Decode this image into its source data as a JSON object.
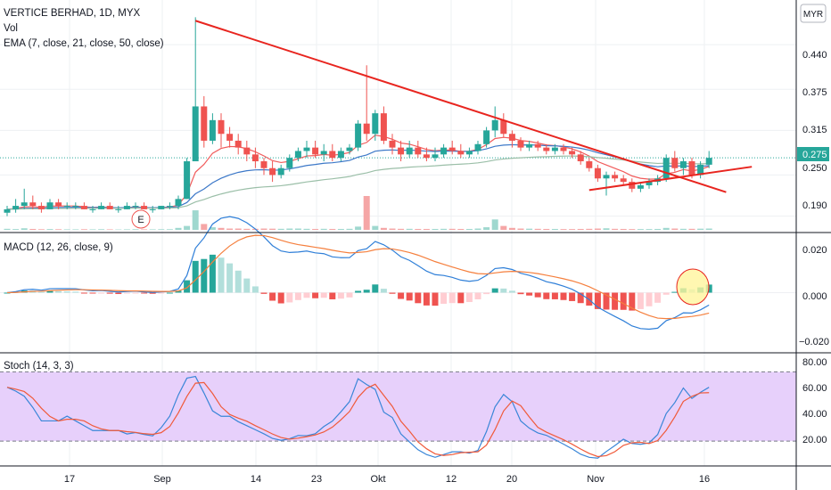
{
  "header": {
    "symbol": "VERTICE BERHAD, 1D, MYX",
    "vol_label": "Vol",
    "ema_label": "EMA (7, close, 21, close, 50, close)",
    "currency_badge": "MYR"
  },
  "colors": {
    "up": "#26a69a",
    "down": "#ef5350",
    "vol_up": "#9fd8cf",
    "vol_down": "#f5a6a6",
    "ema7": "#f15b5b",
    "ema21": "#3c78c8",
    "ema50": "#9bbfa8",
    "trendline": "#e8251f",
    "macd": "#2f7fd8",
    "signal": "#f57f3d",
    "hist_up_strong": "#26a69a",
    "hist_up_weak": "#b2dfdb",
    "hist_down_strong": "#ef5350",
    "hist_down_weak": "#ffcdd2",
    "stoch_k": "#3a86d8",
    "stoch_d": "#f05a3a",
    "stoch_band": "#e7d0fb",
    "grid": "#eef0f3"
  },
  "panes": {
    "price": {
      "yticks": [
        "0.440",
        "0.375",
        "0.315",
        "0.250",
        "0.190"
      ],
      "last_price": "0.275",
      "earnings_marker": "E"
    },
    "macd": {
      "label": "MACD (12, 26, close, 9)",
      "yticks": [
        "0.020",
        "0.000",
        "−0.020"
      ]
    },
    "stoch": {
      "label": "Stoch (14, 3, 3)",
      "yticks": [
        "80.00",
        "60.00",
        "40.00",
        "20.00"
      ]
    }
  },
  "xaxis": {
    "labels": [
      "17",
      "Sep",
      "14",
      "23",
      "Okt",
      "12",
      "20",
      "Nov",
      "16"
    ]
  },
  "chart_data": [
    {
      "type": "candlestick",
      "pane": "price",
      "ylim": [
        0.17,
        0.5
      ],
      "x_tick_labels": [
        "17",
        "Sep",
        "14",
        "23",
        "Okt",
        "12",
        "20",
        "Nov",
        "16"
      ],
      "candles": [
        [
          0.195,
          0.205,
          0.19,
          0.2
        ],
        [
          0.2,
          0.215,
          0.195,
          0.205
        ],
        [
          0.205,
          0.23,
          0.2,
          0.21
        ],
        [
          0.21,
          0.22,
          0.2,
          0.205
        ],
        [
          0.205,
          0.21,
          0.195,
          0.2
        ],
        [
          0.2,
          0.215,
          0.2,
          0.21
        ],
        [
          0.21,
          0.215,
          0.2,
          0.205
        ],
        [
          0.205,
          0.21,
          0.2,
          0.205
        ],
        [
          0.205,
          0.21,
          0.2,
          0.205
        ],
        [
          0.205,
          0.21,
          0.2,
          0.2
        ],
        [
          0.2,
          0.205,
          0.195,
          0.2
        ],
        [
          0.2,
          0.21,
          0.2,
          0.205
        ],
        [
          0.205,
          0.21,
          0.2,
          0.2
        ],
        [
          0.2,
          0.205,
          0.195,
          0.2
        ],
        [
          0.2,
          0.21,
          0.2,
          0.205
        ],
        [
          0.205,
          0.21,
          0.2,
          0.205
        ],
        [
          0.205,
          0.21,
          0.2,
          0.2
        ],
        [
          0.2,
          0.205,
          0.195,
          0.2
        ],
        [
          0.2,
          0.205,
          0.2,
          0.205
        ],
        [
          0.205,
          0.21,
          0.2,
          0.205
        ],
        [
          0.205,
          0.22,
          0.2,
          0.215
        ],
        [
          0.215,
          0.275,
          0.215,
          0.27
        ],
        [
          0.27,
          0.48,
          0.27,
          0.35
        ],
        [
          0.35,
          0.365,
          0.29,
          0.3
        ],
        [
          0.3,
          0.34,
          0.295,
          0.33
        ],
        [
          0.33,
          0.34,
          0.29,
          0.31
        ],
        [
          0.31,
          0.32,
          0.29,
          0.3
        ],
        [
          0.3,
          0.31,
          0.28,
          0.29
        ],
        [
          0.29,
          0.3,
          0.27,
          0.28
        ],
        [
          0.28,
          0.29,
          0.26,
          0.27
        ],
        [
          0.27,
          0.275,
          0.25,
          0.26
        ],
        [
          0.26,
          0.27,
          0.24,
          0.25
        ],
        [
          0.25,
          0.265,
          0.245,
          0.26
        ],
        [
          0.26,
          0.28,
          0.255,
          0.275
        ],
        [
          0.275,
          0.29,
          0.27,
          0.285
        ],
        [
          0.285,
          0.3,
          0.275,
          0.29
        ],
        [
          0.29,
          0.3,
          0.275,
          0.28
        ],
        [
          0.28,
          0.295,
          0.27,
          0.285
        ],
        [
          0.285,
          0.295,
          0.27,
          0.275
        ],
        [
          0.275,
          0.29,
          0.27,
          0.285
        ],
        [
          0.285,
          0.295,
          0.28,
          0.29
        ],
        [
          0.29,
          0.33,
          0.285,
          0.325
        ],
        [
          0.325,
          0.41,
          0.3,
          0.31
        ],
        [
          0.31,
          0.345,
          0.3,
          0.34
        ],
        [
          0.34,
          0.35,
          0.295,
          0.3
        ],
        [
          0.3,
          0.31,
          0.28,
          0.29
        ],
        [
          0.29,
          0.3,
          0.27,
          0.28
        ],
        [
          0.28,
          0.3,
          0.275,
          0.29
        ],
        [
          0.29,
          0.3,
          0.275,
          0.28
        ],
        [
          0.28,
          0.29,
          0.27,
          0.275
        ],
        [
          0.275,
          0.29,
          0.27,
          0.28
        ],
        [
          0.28,
          0.295,
          0.275,
          0.29
        ],
        [
          0.29,
          0.3,
          0.28,
          0.285
        ],
        [
          0.285,
          0.295,
          0.275,
          0.28
        ],
        [
          0.28,
          0.29,
          0.275,
          0.285
        ],
        [
          0.285,
          0.3,
          0.28,
          0.295
        ],
        [
          0.295,
          0.32,
          0.29,
          0.315
        ],
        [
          0.315,
          0.35,
          0.305,
          0.33
        ],
        [
          0.33,
          0.34,
          0.305,
          0.31
        ],
        [
          0.31,
          0.315,
          0.29,
          0.3
        ],
        [
          0.3,
          0.305,
          0.285,
          0.29
        ],
        [
          0.29,
          0.3,
          0.285,
          0.295
        ],
        [
          0.295,
          0.3,
          0.285,
          0.29
        ],
        [
          0.29,
          0.295,
          0.28,
          0.285
        ],
        [
          0.285,
          0.295,
          0.28,
          0.29
        ],
        [
          0.29,
          0.295,
          0.28,
          0.285
        ],
        [
          0.285,
          0.29,
          0.275,
          0.28
        ],
        [
          0.28,
          0.285,
          0.265,
          0.27
        ],
        [
          0.27,
          0.275,
          0.255,
          0.26
        ],
        [
          0.26,
          0.265,
          0.24,
          0.245
        ],
        [
          0.245,
          0.255,
          0.22,
          0.25
        ],
        [
          0.25,
          0.255,
          0.24,
          0.245
        ],
        [
          0.245,
          0.25,
          0.235,
          0.24
        ],
        [
          0.24,
          0.245,
          0.225,
          0.23
        ],
        [
          0.23,
          0.24,
          0.225,
          0.235
        ],
        [
          0.235,
          0.245,
          0.23,
          0.24
        ],
        [
          0.24,
          0.25,
          0.235,
          0.245
        ],
        [
          0.245,
          0.28,
          0.24,
          0.275
        ],
        [
          0.275,
          0.285,
          0.255,
          0.26
        ],
        [
          0.26,
          0.275,
          0.25,
          0.27
        ],
        [
          0.27,
          0.275,
          0.245,
          0.25
        ],
        [
          0.25,
          0.27,
          0.245,
          0.265
        ],
        [
          0.265,
          0.285,
          0.26,
          0.275
        ]
      ],
      "volume": [
        0.8,
        0.6,
        1.2,
        0.7,
        0.5,
        0.6,
        0.5,
        0.4,
        0.4,
        0.5,
        0.4,
        0.5,
        0.4,
        0.3,
        0.4,
        0.5,
        0.4,
        0.4,
        0.5,
        0.5,
        1.5,
        3.0,
        15.0,
        4.5,
        2.0,
        1.5,
        1.0,
        1.0,
        0.8,
        0.8,
        1.0,
        0.9,
        0.8,
        1.0,
        1.0,
        0.8,
        0.7,
        0.8,
        0.7,
        0.7,
        0.8,
        2.5,
        26.0,
        3.0,
        1.5,
        1.0,
        0.8,
        0.8,
        0.7,
        0.7,
        0.7,
        0.8,
        0.8,
        0.7,
        0.7,
        1.0,
        2.0,
        8.0,
        3.0,
        1.5,
        1.0,
        0.9,
        0.8,
        0.7,
        0.7,
        0.6,
        0.6,
        0.7,
        0.8,
        1.0,
        1.2,
        0.8,
        0.7,
        0.6,
        0.6,
        0.6,
        0.7,
        1.5,
        1.0,
        0.8,
        0.8,
        0.9,
        1.0
      ],
      "trendlines": [
        {
          "from": [
            22,
            0.475
          ],
          "to": [
            84,
            0.225
          ]
        },
        {
          "from": [
            68,
            0.228
          ],
          "to": [
            87,
            0.262
          ]
        }
      ]
    },
    {
      "type": "macd",
      "pane": "macd",
      "ylim": [
        -0.022,
        0.022
      ],
      "label": "MACD (12, 26, close, 9)"
    },
    {
      "type": "stochastic",
      "pane": "stoch",
      "ylim": [
        0,
        95
      ],
      "label": "Stoch (14, 3, 3)",
      "bands": [
        20,
        80
      ]
    }
  ]
}
